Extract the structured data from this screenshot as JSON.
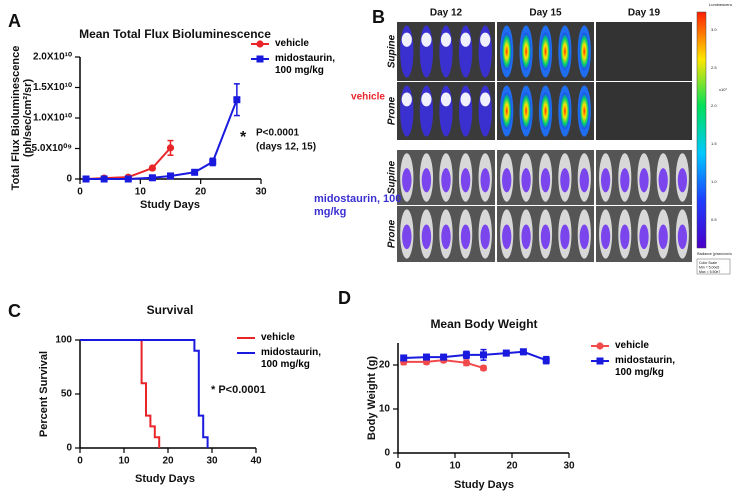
{
  "panel_b": {
    "letter": "B",
    "days": [
      "Day 12",
      "Day 15",
      "Day 19"
    ],
    "views": [
      "Supine",
      "Prone"
    ],
    "groups": [
      "vehicle",
      "midostaurin, 100 mg/kg"
    ],
    "colorbar": {
      "title": "Luminescence",
      "ticks": [
        "3.0",
        "2.5",
        "2.0",
        "1.5",
        "1.0",
        "0.5"
      ],
      "unit": "x10⁷",
      "footer": "Radiance (p/sec/cm²/sr)",
      "scale": [
        "Color Scale",
        "Min = 5.00e5",
        "Max = 5.50e7"
      ]
    }
  },
  "chart_data": [
    {
      "panel": "A",
      "type": "line",
      "title": "Mean Total Flux Bioluminescence",
      "xlabel": "Study Days",
      "ylabel": [
        "Total Flux Bioluminescence",
        "(ph/sec/cm²/sr)"
      ],
      "xlim": [
        0,
        30
      ],
      "xticks": [
        0,
        10,
        20,
        30
      ],
      "ylim": [
        0,
        20000000000
      ],
      "yticks": [
        0,
        {
          "value": 5000000000,
          "label": "5.0X10⁰⁹"
        },
        {
          "value": 10000000000,
          "label": "1.0X10¹⁰"
        },
        {
          "value": 15000000000,
          "label": "1.5X10¹⁰"
        },
        {
          "value": 20000000000,
          "label": "2.0X10¹⁰"
        }
      ],
      "series": [
        {
          "name": "vehicle",
          "color": "#e8262a",
          "marker": "circle",
          "x": [
            1,
            4,
            8,
            12,
            15
          ],
          "values": [
            0,
            150000000,
            300000000,
            1800000000,
            5100000000
          ],
          "errors": [
            50000000,
            80000000,
            100000000,
            300000000,
            1200000000
          ]
        },
        {
          "name": "midostaurin, 100 mg/kg",
          "color": "#1a1adf",
          "marker": "square",
          "x": [
            1,
            4,
            8,
            12,
            15,
            19,
            22,
            26
          ],
          "values": [
            0,
            0,
            0,
            200000000,
            500000000,
            1100000000,
            2800000000,
            13000000000
          ],
          "errors": [
            50000000,
            50000000,
            50000000,
            100000000,
            200000000,
            300000000,
            600000000,
            2600000000
          ]
        }
      ],
      "annotations": [
        "*",
        "P<0.0001",
        "(days 12, 15)"
      ]
    },
    {
      "panel": "C",
      "type": "step",
      "title": "Survival",
      "xlabel": "Study Days",
      "ylabel": [
        "Percent Survival"
      ],
      "xlim": [
        0,
        40
      ],
      "xticks": [
        0,
        10,
        20,
        30,
        40
      ],
      "ylim": [
        0,
        100
      ],
      "yticks": [
        0,
        50,
        100
      ],
      "series": [
        {
          "name": "vehicle",
          "color": "#e8262a",
          "x": [
            0,
            14,
            15,
            16,
            17,
            18
          ],
          "values": [
            100,
            60,
            30,
            20,
            10,
            0
          ]
        },
        {
          "name": "midostaurin, 100 mg/kg",
          "color": "#1a1adf",
          "x": [
            0,
            26,
            27,
            28,
            29
          ],
          "values": [
            100,
            90,
            30,
            10,
            0
          ]
        }
      ],
      "annotations": [
        "* P<0.0001"
      ]
    },
    {
      "panel": "D",
      "type": "line",
      "title": "Mean Body Weight",
      "xlabel": "Study Days",
      "ylabel": [
        "Body Weight (g)"
      ],
      "xlim": [
        0,
        30
      ],
      "xticks": [
        0,
        10,
        20,
        30
      ],
      "ylim": [
        0,
        25
      ],
      "yticks": [
        0,
        10,
        20
      ],
      "series": [
        {
          "name": "vehicle",
          "color": "#f04a4a",
          "marker": "circle",
          "x": [
            1,
            5,
            8,
            12,
            15
          ],
          "values": [
            20.7,
            20.7,
            21.1,
            20.5,
            19.3
          ],
          "errors": [
            0.6,
            0.5,
            0.5,
            0.6,
            0.5
          ]
        },
        {
          "name": "midostaurin, 100 mg/kg",
          "color": "#1a1adf",
          "marker": "square",
          "x": [
            1,
            5,
            8,
            12,
            15,
            19,
            22,
            26
          ],
          "values": [
            21.6,
            21.8,
            21.8,
            22.3,
            22.3,
            22.7,
            23,
            21.1
          ],
          "errors": [
            0.6,
            0.6,
            0.5,
            0.8,
            1.2,
            0.6,
            0.6,
            0.8
          ]
        }
      ],
      "annotations": []
    }
  ]
}
